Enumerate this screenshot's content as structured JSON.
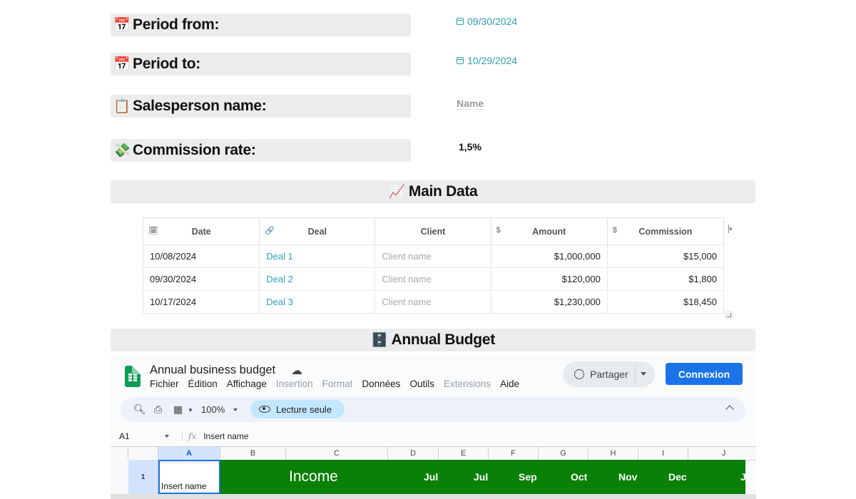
{
  "fields": {
    "period_from": {
      "emoji": "📅",
      "label": "Period from:",
      "value": "09/30/2024"
    },
    "period_to": {
      "emoji": "📅",
      "label": "Period to:",
      "value": "10/29/2024"
    },
    "salesperson": {
      "emoji": "📋",
      "label": "Salesperson name:",
      "placeholder": "Name"
    },
    "commission_rate": {
      "emoji": "💸",
      "label": "Commission rate:",
      "value": "1,5%"
    }
  },
  "main_data": {
    "emoji": "📈",
    "title": "Main Data",
    "columns": [
      {
        "icon": "calendar-icon",
        "glyph": "🗓",
        "label": "Date"
      },
      {
        "icon": "link-icon",
        "glyph": "🔗",
        "label": "Deal"
      },
      {
        "icon": "",
        "glyph": "",
        "label": "Client"
      },
      {
        "icon": "dollar-icon",
        "glyph": "$",
        "label": "Amount"
      },
      {
        "icon": "dollar-icon",
        "glyph": "$",
        "label": "Commission"
      }
    ],
    "rows": [
      {
        "date": "10/08/2024",
        "deal": "Deal 1",
        "client": "Client name",
        "amount": "$1,000,000",
        "commission": "$15,000"
      },
      {
        "date": "09/30/2024",
        "deal": "Deal 2",
        "client": "Client name",
        "amount": "$120,000",
        "commission": "$1,800"
      },
      {
        "date": "10/17/2024",
        "deal": "Deal 3",
        "client": "Client name",
        "amount": "$1,230,000",
        "commission": "$18,450"
      }
    ]
  },
  "annual_budget": {
    "emoji": "🗄️",
    "title": "Annual Budget"
  },
  "sheets": {
    "title": "Annual business budget",
    "menu": [
      {
        "label": "Fichier",
        "dim": false
      },
      {
        "label": "Édition",
        "dim": false
      },
      {
        "label": "Affichage",
        "dim": false
      },
      {
        "label": "Insertion",
        "dim": true
      },
      {
        "label": "Format",
        "dim": true
      },
      {
        "label": "Données",
        "dim": false
      },
      {
        "label": "Outils",
        "dim": false
      },
      {
        "label": "Extensions",
        "dim": true
      },
      {
        "label": "Aide",
        "dim": false
      }
    ],
    "share_label": "Partager",
    "login_label": "Connexion",
    "zoom": "100%",
    "readonly_label": "Lecture seule",
    "cell_ref": "A1",
    "formula": "Insert name",
    "col_headers": [
      "A",
      "B",
      "C",
      "D",
      "E",
      "F",
      "G",
      "H",
      "I",
      "J"
    ],
    "row_number": "1",
    "cell_a1": "Insert name",
    "income_label": "Income",
    "months": [
      "Jul",
      "Jul",
      "Sep",
      "Oct",
      "Nov",
      "Dec",
      "J"
    ],
    "colors": {
      "green": "#0a8006",
      "accent_blue": "#1a73e8",
      "link": "#2e9fb3"
    }
  }
}
